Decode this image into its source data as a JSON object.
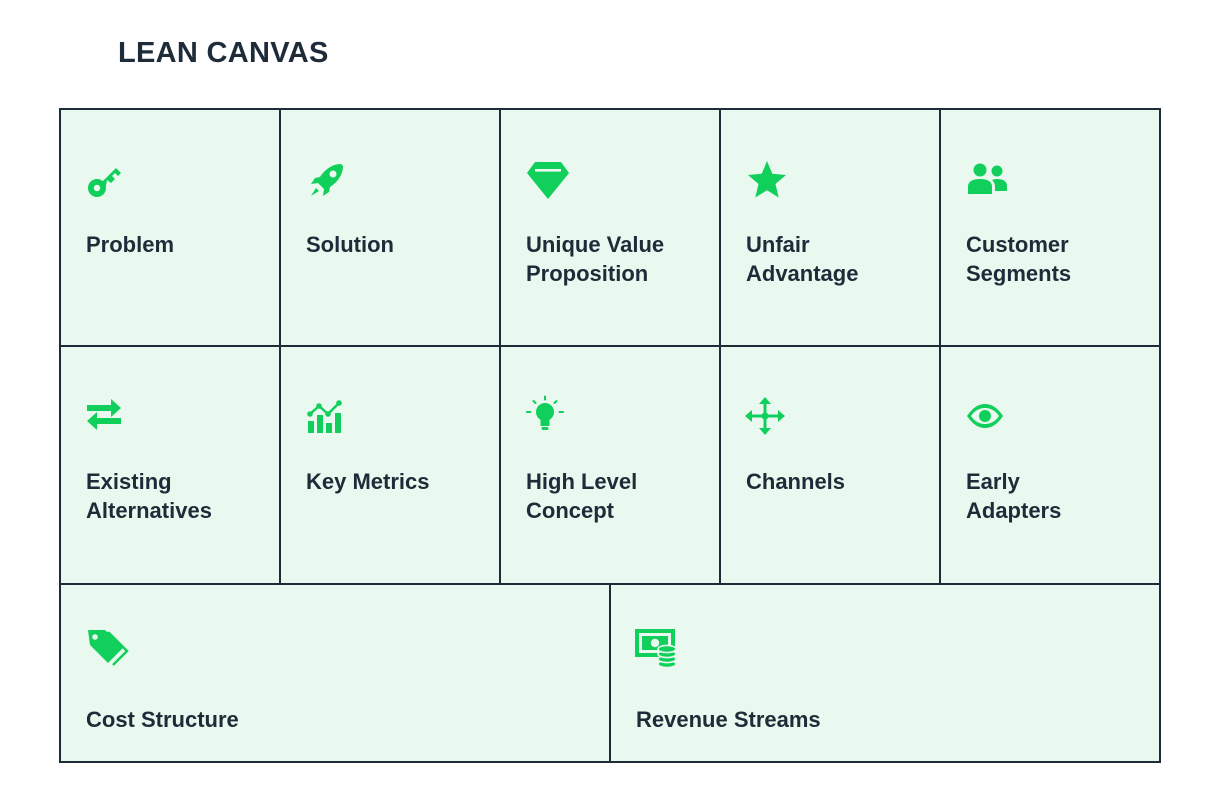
{
  "title": "LEAN CANVAS",
  "accent_color": "#10cf5a",
  "grid_line_color": "#1e2b38",
  "cell_background": "#eaf9ef",
  "blocks": [
    {
      "label": "Problem",
      "icon": "key-icon"
    },
    {
      "label": "Solution",
      "icon": "rocket-icon"
    },
    {
      "label": "Unique Value\nProposition",
      "icon": "diamond-icon"
    },
    {
      "label": "Unfair\nAdvantage",
      "icon": "star-icon"
    },
    {
      "label": "Customer\nSegments",
      "icon": "users-icon"
    },
    {
      "label": "Existing\nAlternatives",
      "icon": "swap-arrows-icon"
    },
    {
      "label": "Key Metrics",
      "icon": "bar-chart-icon"
    },
    {
      "label": "High Level\nConcept",
      "icon": "lightbulb-icon"
    },
    {
      "label": "Channels",
      "icon": "move-arrows-icon"
    },
    {
      "label": "Early\nAdapters",
      "icon": "eye-icon"
    },
    {
      "label": "Cost Structure",
      "icon": "price-tags-icon"
    },
    {
      "label": "Revenue Streams",
      "icon": "money-coins-icon"
    }
  ]
}
